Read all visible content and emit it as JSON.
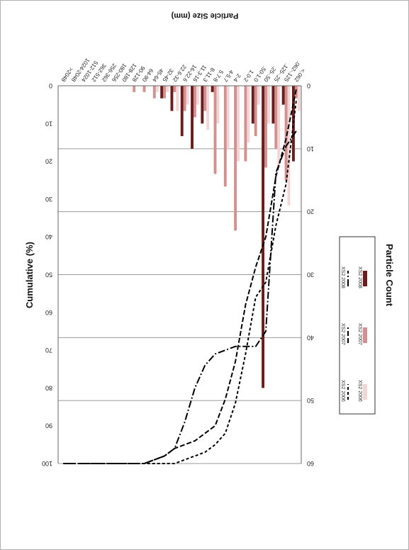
{
  "chart_data": {
    "type": "bar",
    "orientation": "rotated 180 degrees (upside down)",
    "categories": [
      "<.062",
      ".062-.125",
      ".125-.25",
      ".25-.50",
      ".50-1.0",
      "1.0-2",
      "2-4",
      "4-5.7",
      "5.7-8",
      "8-11.3",
      "11.3-16",
      "16-22.6",
      "22.6-32",
      "32-45",
      "45-64",
      "64-90",
      "90-128",
      "128-180",
      "180-256",
      "256-362",
      "362-512",
      "512-1024",
      "1024-2048",
      ">2048"
    ],
    "xlabel": "Particle Size (mm)",
    "ylabel": "Particle Count",
    "y2label": "Cumulative (%)",
    "ylim": [
      0,
      60
    ],
    "y_ticks": [
      0,
      10,
      20,
      30,
      40,
      50,
      60
    ],
    "y2lim": [
      0,
      100
    ],
    "y2_ticks": [
      0,
      10,
      20,
      30,
      40,
      50,
      60,
      70,
      80,
      90,
      100
    ],
    "grid": true,
    "legend_position": "right",
    "series": [
      {
        "name": "XS2 2006",
        "kind": "bar",
        "color": "#f2d6d6",
        "values": [
          4,
          19,
          13,
          6,
          3,
          9,
          12,
          10,
          6,
          7,
          3,
          3,
          4,
          1,
          1,
          0,
          0,
          0,
          0,
          0,
          0,
          0,
          0,
          0
        ]
      },
      {
        "name": "XS2 2007",
        "kind": "bar",
        "color": "#d49090",
        "values": [
          2,
          15,
          10,
          13,
          8,
          12,
          23,
          16,
          14,
          4,
          5,
          4,
          1,
          2,
          2,
          1,
          1,
          0,
          0,
          0,
          0,
          0,
          0,
          0
        ]
      },
      {
        "name": "XS2 2008",
        "kind": "bar",
        "color": "#6b1c1c",
        "values": [
          12,
          3,
          6,
          48,
          6,
          0,
          0,
          0,
          1,
          6,
          10,
          8,
          4,
          2,
          0,
          0,
          0,
          0,
          0,
          0,
          0,
          0,
          0,
          0
        ]
      },
      {
        "name": "XS2 2006",
        "kind": "line",
        "dash": "4,3",
        "color": "#000000",
        "values": [
          4,
          26,
          37,
          52,
          56,
          71,
          84,
          92,
          95,
          97,
          98,
          99,
          100,
          100,
          100,
          100,
          100,
          100,
          100,
          100,
          100,
          100,
          100,
          100
        ]
      },
      {
        "name": "XS2 2007",
        "kind": "line",
        "dash": "7,3",
        "color": "#000000",
        "values": [
          1,
          14,
          24,
          40,
          48,
          58,
          73,
          83,
          90,
          92,
          94,
          95,
          96,
          98,
          99,
          100,
          100,
          100,
          100,
          100,
          100,
          100,
          100,
          100
        ]
      },
      {
        "name": "XS2 2008",
        "kind": "line",
        "dash": "10,3,2,3",
        "color": "#000000",
        "values": [
          12,
          16,
          23,
          65,
          69,
          69,
          69,
          70,
          71,
          74,
          80,
          89,
          96,
          98,
          99,
          100,
          100,
          100,
          100,
          100,
          100,
          100,
          100,
          100
        ]
      }
    ]
  },
  "colors": {
    "background": "#ffffff",
    "grid": "#9a9a9a",
    "axis": "#666666"
  }
}
